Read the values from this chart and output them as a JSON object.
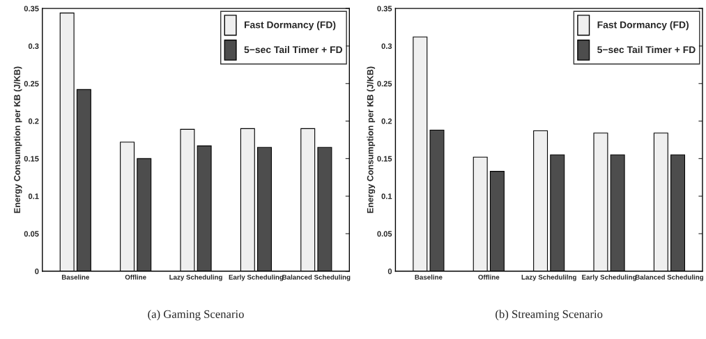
{
  "chart_data": [
    {
      "type": "bar",
      "title": "(a) Gaming Scenario",
      "ylabel": "Energy Consumption per KB (J/KB)",
      "categories": [
        "Baseline",
        "Offline",
        "Lazy Scheduling",
        "Early Scheduling",
        "Balanced Scheduling"
      ],
      "series": [
        {
          "name": "Fast Dormancy (FD)",
          "color": "#efefef",
          "values": [
            0.344,
            0.172,
            0.189,
            0.19,
            0.19
          ]
        },
        {
          "name": "5−sec Tail Timer + FD",
          "color": "#4d4d4d",
          "values": [
            0.242,
            0.15,
            0.167,
            0.165,
            0.165
          ]
        }
      ],
      "ylim": [
        0,
        0.35
      ],
      "yticks": [
        0,
        0.05,
        0.1,
        0.15,
        0.2,
        0.25,
        0.3,
        0.35
      ],
      "legend": "top right",
      "grid": false
    },
    {
      "type": "bar",
      "title": "(b) Streaming Scenario",
      "ylabel": "Energy Consumption per KB (J/KB)",
      "categories": [
        "Baseline",
        "Offline",
        "Lazy Schedulilng",
        "Early Scheduling",
        "Balanced Scheduling"
      ],
      "series": [
        {
          "name": "Fast Dormancy (FD)",
          "color": "#efefef",
          "values": [
            0.312,
            0.152,
            0.187,
            0.184,
            0.184
          ]
        },
        {
          "name": "5−sec Tail Timer + FD",
          "color": "#4d4d4d",
          "values": [
            0.188,
            0.133,
            0.155,
            0.155,
            0.155
          ]
        }
      ],
      "ylim": [
        0,
        0.35
      ],
      "yticks": [
        0,
        0.05,
        0.1,
        0.15,
        0.2,
        0.25,
        0.3,
        0.35
      ],
      "legend": "top right",
      "grid": false
    }
  ]
}
